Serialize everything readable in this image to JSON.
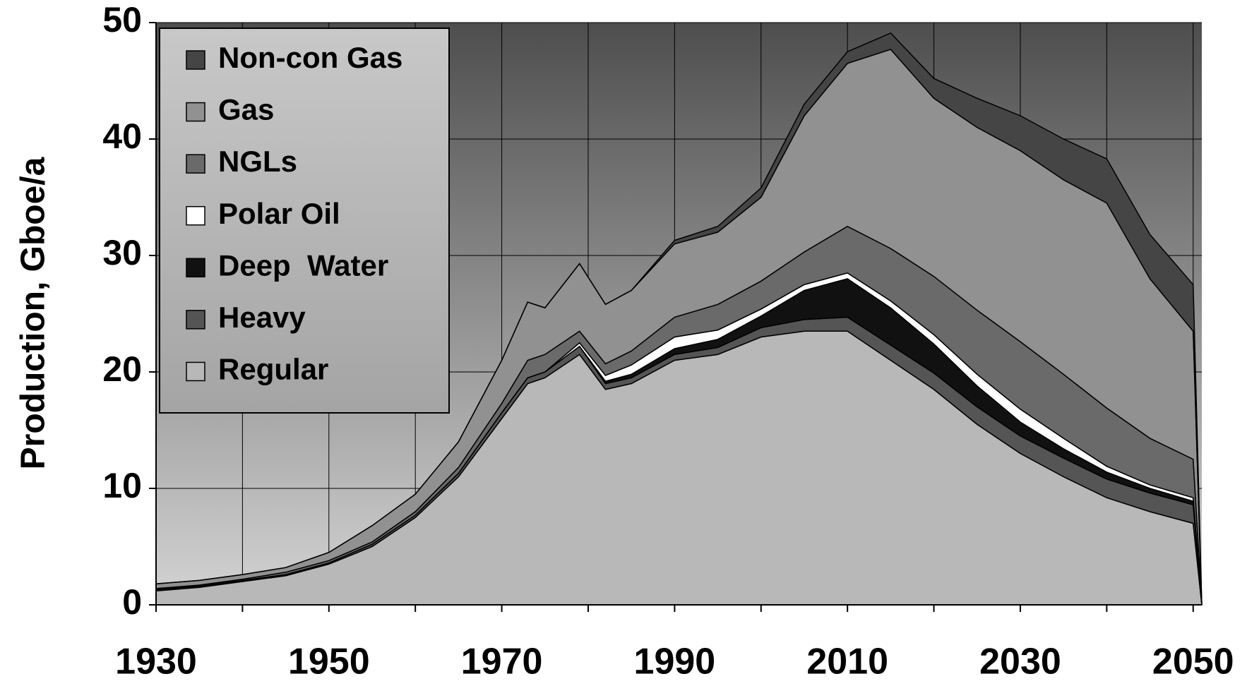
{
  "chart_data": {
    "type": "stacked_area",
    "ylabel": "Production, Gboe/a",
    "x": [
      1930,
      1935,
      1940,
      1945,
      1950,
      1955,
      1960,
      1965,
      1970,
      1973,
      1975,
      1979,
      1982,
      1985,
      1990,
      1995,
      2000,
      2005,
      2010,
      2015,
      2020,
      2025,
      2030,
      2035,
      2040,
      2045,
      2050,
      2051
    ],
    "series": [
      {
        "name": "Regular",
        "color": "#b8b8b8",
        "values": [
          1.2,
          1.5,
          2.0,
          2.5,
          3.5,
          5,
          7.5,
          11,
          16,
          19,
          19.5,
          21.5,
          18.5,
          19,
          21,
          21.5,
          23,
          23.5,
          23.5,
          21,
          18.5,
          15.5,
          13,
          11,
          9.2,
          8,
          7,
          0
        ]
      },
      {
        "name": "Heavy",
        "color": "#555555",
        "values": [
          0.1,
          0.1,
          0.1,
          0.1,
          0.1,
          0.2,
          0.2,
          0.3,
          0.5,
          0.5,
          0.5,
          0.7,
          0.5,
          0.5,
          0.5,
          0.6,
          0.8,
          1.0,
          1.2,
          1.3,
          1.4,
          1.5,
          1.5,
          1.6,
          1.6,
          1.6,
          1.6,
          0
        ]
      },
      {
        "name": "Deep  Water",
        "color": "#111111",
        "values": [
          0,
          0,
          0,
          0,
          0,
          0,
          0,
          0,
          0,
          0,
          0,
          0,
          0.2,
          0.3,
          0.5,
          0.7,
          1.0,
          2.5,
          3.3,
          3.2,
          2.5,
          1.8,
          1.2,
          0.8,
          0.6,
          0.4,
          0.3,
          0
        ]
      },
      {
        "name": "Polar Oil",
        "color": "#ffffff",
        "values": [
          0,
          0,
          0,
          0,
          0,
          0,
          0,
          0,
          0,
          0,
          0,
          0.3,
          0.5,
          0.8,
          1.0,
          0.8,
          0.6,
          0.5,
          0.5,
          0.6,
          0.8,
          1.0,
          1.1,
          0.9,
          0.5,
          0.3,
          0.3,
          0
        ]
      },
      {
        "name": "NGLs",
        "color": "#6a6a6a",
        "values": [
          0.1,
          0.1,
          0.1,
          0.2,
          0.2,
          0.2,
          0.3,
          0.5,
          0.8,
          1.5,
          1.5,
          1.0,
          1.0,
          1.2,
          1.7,
          2.2,
          2.4,
          2.8,
          4.0,
          4.5,
          5.0,
          5.5,
          5.8,
          5.5,
          5.0,
          4.0,
          3.3,
          0
        ]
      },
      {
        "name": "Gas",
        "color": "#919191",
        "values": [
          0.4,
          0.4,
          0.4,
          0.4,
          0.7,
          1.4,
          1.5,
          2.2,
          3.7,
          5.0,
          4.0,
          5.8,
          5.1,
          5.2,
          6.3,
          6.2,
          7.2,
          11.7,
          14.0,
          17.1,
          15.3,
          15.7,
          16.4,
          16.7,
          17.6,
          13.7,
          11.0,
          0
        ]
      },
      {
        "name": "Non-con Gas",
        "color": "#454545",
        "values": [
          0,
          0,
          0,
          0,
          0,
          0,
          0,
          0,
          0,
          0,
          0,
          0,
          0,
          0,
          0.3,
          0.5,
          0.8,
          1.0,
          1.0,
          1.4,
          1.7,
          2.5,
          3.0,
          3.5,
          3.8,
          3.8,
          4.0,
          0
        ]
      }
    ],
    "xlim": [
      1930,
      2051
    ],
    "xticks": [
      1930,
      1950,
      1970,
      1990,
      2010,
      2030,
      2050
    ],
    "minor_xticks": [
      1940,
      1960,
      1980,
      2000,
      2020,
      2040
    ],
    "ylim": [
      0,
      50
    ],
    "yticks": [
      0,
      10,
      20,
      30,
      40,
      50
    ],
    "grid": true,
    "legend": "upper left"
  }
}
